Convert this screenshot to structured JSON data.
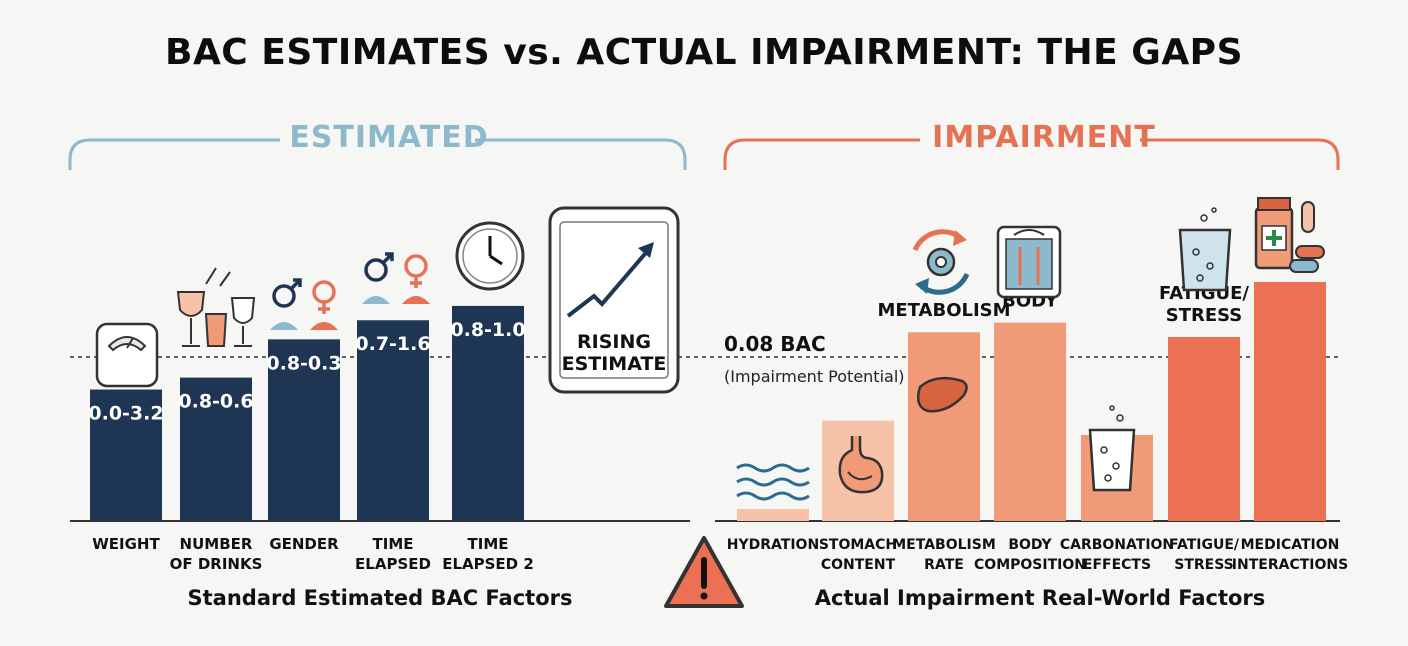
{
  "title": "BAC ESTIMATES vs. ACTUAL IMPAIRMENT: THE GAPS",
  "left_section_label": "ESTIMATED",
  "right_section_label": "IMPAIRMENT",
  "left_footer": "Standard Estimated BAC Factors",
  "right_footer": "Actual Impairment Real-World Factors",
  "rising_estimate_label": [
    "RISING",
    "ESTIMATE"
  ],
  "threshold": {
    "label": "0.08 BAC",
    "sublabel": "(Impairment Potential)"
  },
  "colors": {
    "estimated_bar": "#1e3553",
    "estimated_accent": "#8db9cc",
    "impairment_light": "#f6c2a8",
    "impairment_mid": "#f19a77",
    "impairment_dark": "#ec7053",
    "impairment_accent": "#e47253"
  },
  "icons": [
    "scale-icon",
    "wine-glasses-icon",
    "gender-icon",
    "clock-icon",
    "tablet-chart-icon",
    "water-waves-icon",
    "stomach-icon",
    "gear-cycle-icon",
    "liver-icon",
    "body-scale-icon",
    "fizzy-glass-icon",
    "medication-icon",
    "warning-icon"
  ],
  "chart_data": [
    {
      "type": "bar",
      "title": "Standard Estimated BAC Factors",
      "categories": [
        [
          "WEIGHT"
        ],
        [
          "NUMBER",
          "OF DRINKS"
        ],
        [
          "GENDER"
        ],
        [
          "TIME",
          "ELAPSED"
        ],
        [
          "TIME",
          "ELAPSED 2"
        ]
      ],
      "values": [
        0.55,
        0.6,
        0.76,
        0.84,
        0.9
      ],
      "data_labels": [
        "0.0-3.2",
        "0.8-0.6",
        "0.8-0.3",
        "0.7-1.6",
        "0.8-1.0"
      ]
    },
    {
      "type": "bar",
      "title": "Actual Impairment Real-World Factors",
      "categories": [
        [
          "HYDRATION"
        ],
        [
          "STOMACH",
          "CONTENT"
        ],
        [
          "METABOLISM",
          "RATE"
        ],
        [
          "BODY",
          "COMPOSITION"
        ],
        [
          "CARBONATION",
          "EFFECTS"
        ],
        [
          "FATIGUE/",
          "STRESS"
        ],
        [
          "MEDICATION",
          "INTERACTIONS"
        ]
      ],
      "values": [
        0.05,
        0.42,
        0.79,
        0.83,
        0.36,
        0.77,
        1.0
      ],
      "bar_annotations": [
        "",
        "",
        "METABOLISM",
        "BODY",
        "",
        [
          "FATIGUE/",
          "STRESS"
        ],
        ""
      ]
    }
  ]
}
